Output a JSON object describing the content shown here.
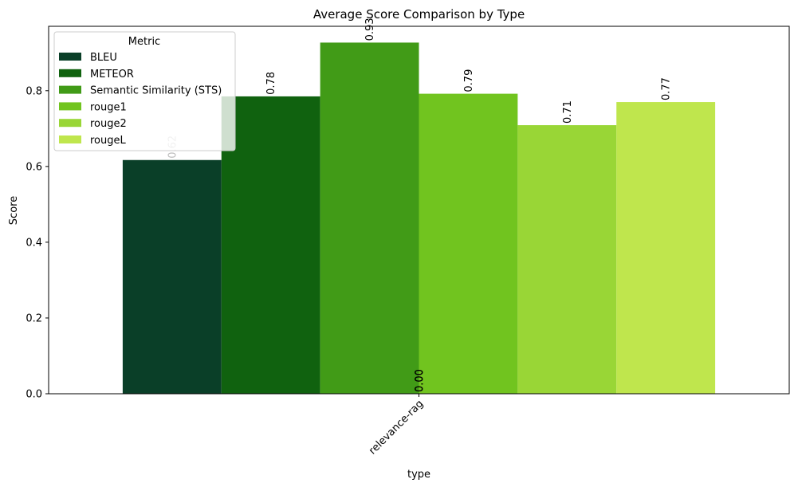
{
  "chart_data": {
    "type": "bar",
    "title": "Average Score Comparison by Type",
    "xlabel": "type",
    "ylabel": "Score",
    "categories": [
      "relevance-rag"
    ],
    "ylim": [
      0,
      0.97
    ],
    "yticks": [
      "0.0",
      "0.2",
      "0.4",
      "0.6",
      "0.8"
    ],
    "grid": false,
    "legend": {
      "title": "Metric",
      "placement": "top-left"
    },
    "series": [
      {
        "name": "BLEU",
        "values": [
          0.617
        ],
        "label": "0.62",
        "color": "#0a3f28"
      },
      {
        "name": "METEOR",
        "values": [
          0.785
        ],
        "label": "0.78",
        "color": "#10620f"
      },
      {
        "name": "Semantic Similarity (STS)",
        "values": [
          0.927
        ],
        "label": "0.93",
        "color": "#419b17"
      },
      {
        "name": "rouge1",
        "values": [
          0.792
        ],
        "label": "0.79",
        "color": "#71c41f"
      },
      {
        "name": "rouge2",
        "values": [
          0.709
        ],
        "label": "0.71",
        "color": "#99d636"
      },
      {
        "name": "rougeL",
        "values": [
          0.77
        ],
        "label": "0.77",
        "color": "#bfe64d"
      }
    ],
    "annotations": [
      "0.00",
      "0.00"
    ]
  }
}
